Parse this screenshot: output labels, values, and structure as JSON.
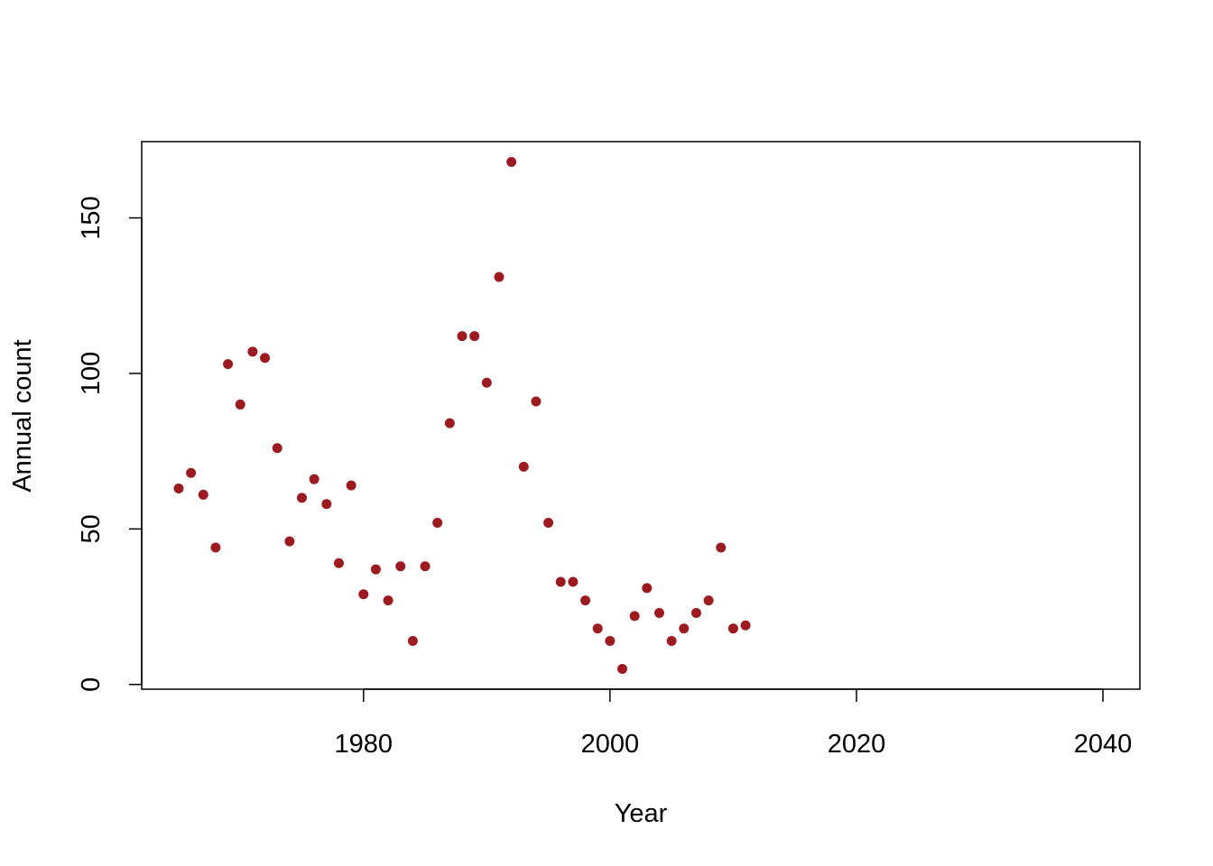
{
  "chart_data": {
    "type": "scatter",
    "title": "",
    "xlabel": "Year",
    "ylabel": "Annual count",
    "xlim": [
      1965,
      2040
    ],
    "ylim": [
      5,
      168
    ],
    "xticks": [
      1980,
      2000,
      2020,
      2040
    ],
    "yticks": [
      0,
      50,
      100,
      150
    ],
    "grid": false,
    "point_color": "#9B1B20",
    "x": [
      1965,
      1966,
      1967,
      1968,
      1969,
      1970,
      1971,
      1972,
      1973,
      1974,
      1975,
      1976,
      1977,
      1978,
      1979,
      1980,
      1981,
      1982,
      1983,
      1984,
      1985,
      1986,
      1987,
      1988,
      1989,
      1990,
      1991,
      1992,
      1993,
      1994,
      1995,
      1996,
      1997,
      1998,
      1999,
      2000,
      2001,
      2002,
      2003,
      2004,
      2005,
      2006,
      2007,
      2008,
      2009,
      2010,
      2011
    ],
    "y": [
      63,
      68,
      61,
      44,
      103,
      90,
      107,
      105,
      76,
      46,
      60,
      66,
      58,
      39,
      64,
      29,
      37,
      27,
      38,
      14,
      38,
      52,
      84,
      112,
      112,
      97,
      131,
      168,
      70,
      91,
      52,
      33,
      33,
      27,
      18,
      14,
      5,
      22,
      31,
      23,
      14,
      18,
      23,
      27,
      44,
      18,
      19
    ]
  }
}
